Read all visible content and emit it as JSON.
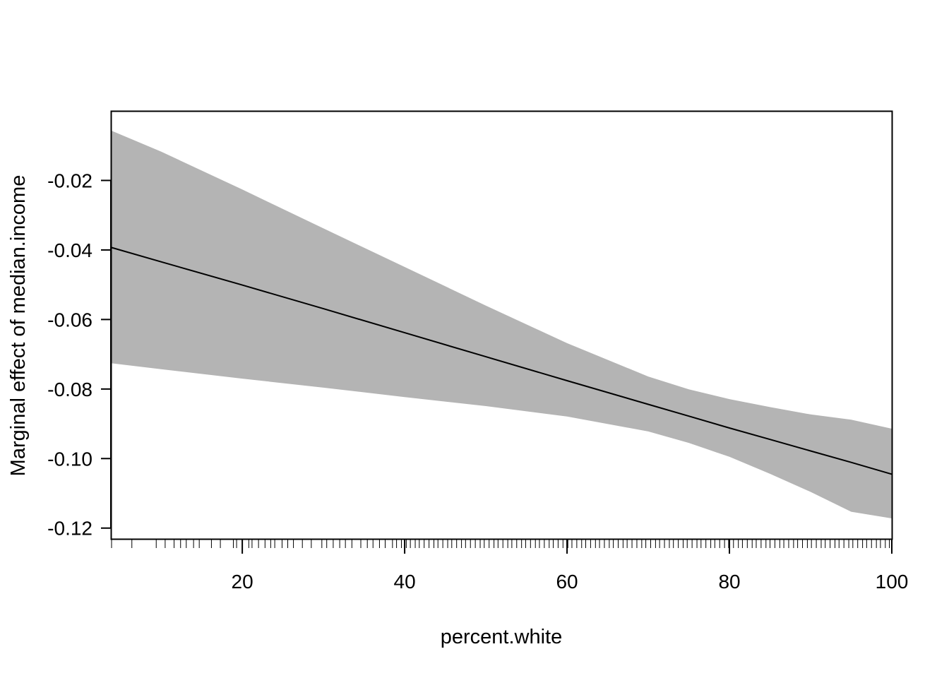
{
  "chart_data": {
    "type": "line",
    "title": "",
    "xlabel": "percent.white",
    "ylabel": "Marginal effect of median.income",
    "xlim": [
      3.9,
      100
    ],
    "ylim": [
      -0.1231,
      -0.0002
    ],
    "x_ticks": [
      20,
      40,
      60,
      80,
      100
    ],
    "x_tick_labels": [
      "20",
      "40",
      "60",
      "80",
      "100"
    ],
    "y_ticks": [
      -0.02,
      -0.04,
      -0.06,
      -0.08,
      -0.1,
      -0.12
    ],
    "y_tick_labels": [
      "-0.02",
      "-0.04",
      "-0.06",
      "-0.08",
      "-0.10",
      "-0.12"
    ],
    "grid": false,
    "legend": "none",
    "colors": {
      "band": "#b4b4b4",
      "line": "#000000",
      "rug": "#000000"
    },
    "series": [
      {
        "x": [
          3.9,
          10,
          20,
          30,
          40,
          50,
          60,
          70,
          75,
          80,
          85,
          90,
          95,
          100
        ],
        "values": [
          -0.0393,
          -0.0434,
          -0.0501,
          -0.0569,
          -0.0638,
          -0.0707,
          -0.0776,
          -0.0844,
          -0.0878,
          -0.0912,
          -0.0945,
          -0.0978,
          -0.1011,
          -0.1045
        ]
      }
    ],
    "confidence_band": {
      "x": [
        3.9,
        10,
        20,
        30,
        40,
        50,
        60,
        70,
        75,
        80,
        85,
        90,
        95,
        100
      ],
      "lower": [
        -0.0726,
        -0.0743,
        -0.077,
        -0.0796,
        -0.0823,
        -0.0849,
        -0.0879,
        -0.0922,
        -0.0955,
        -0.0995,
        -0.1044,
        -0.1096,
        -0.1153,
        -0.1172
      ],
      "upper": [
        -0.0057,
        -0.0117,
        -0.0226,
        -0.0338,
        -0.0449,
        -0.056,
        -0.0668,
        -0.0764,
        -0.0801,
        -0.0829,
        -0.0852,
        -0.0873,
        -0.0888,
        -0.0914
      ]
    },
    "rug": [
      3.9,
      6.4,
      9.4,
      10.5,
      11.6,
      12.4,
      13.1,
      14.0,
      14.7,
      16.2,
      17.3,
      18.9,
      19.3,
      20.0,
      20.8,
      21.2,
      22.0,
      22.8,
      23.5,
      24.0,
      24.9,
      25.6,
      26.3,
      27.4,
      28.5,
      29.8,
      30.4,
      31.2,
      32.0,
      32.7,
      33.5,
      34.6,
      35.4,
      36.1,
      36.9,
      37.6,
      38.5,
      39.0,
      39.6,
      40.2,
      40.7,
      41.3,
      41.8,
      42.4,
      43.0,
      43.6,
      44.1,
      44.7,
      45.3,
      45.8,
      46.4,
      47.0,
      47.5,
      48.1,
      48.7,
      49.3,
      49.8,
      50.4,
      51.0,
      51.5,
      52.1,
      52.7,
      53.2,
      53.8,
      54.4,
      54.9,
      55.5,
      56.1,
      56.6,
      57.2,
      57.8,
      58.3,
      58.9,
      59.5,
      60.1,
      60.6,
      61.2,
      61.8,
      62.3,
      62.9,
      63.5,
      64.0,
      64.6,
      65.2,
      65.7,
      66.3,
      66.9,
      67.4,
      68.0,
      68.6,
      69.2,
      69.7,
      70.3,
      70.9,
      71.4,
      72.0,
      72.6,
      73.1,
      73.7,
      74.3,
      74.8,
      75.4,
      76.0,
      76.5,
      77.1,
      77.7,
      78.2,
      78.8,
      79.4,
      79.9,
      80.5,
      81.1,
      81.6,
      82.2,
      82.8,
      83.3,
      83.9,
      84.5,
      85.0,
      85.6,
      86.2,
      86.7,
      87.3,
      87.9,
      88.4,
      89.0,
      89.6,
      90.1,
      90.7,
      91.3,
      91.8,
      92.4,
      93.0,
      93.5,
      94.1,
      94.7,
      95.2,
      95.8,
      96.4,
      96.9,
      97.5,
      98.1,
      98.6,
      99.2,
      99.7,
      100.0
    ]
  }
}
